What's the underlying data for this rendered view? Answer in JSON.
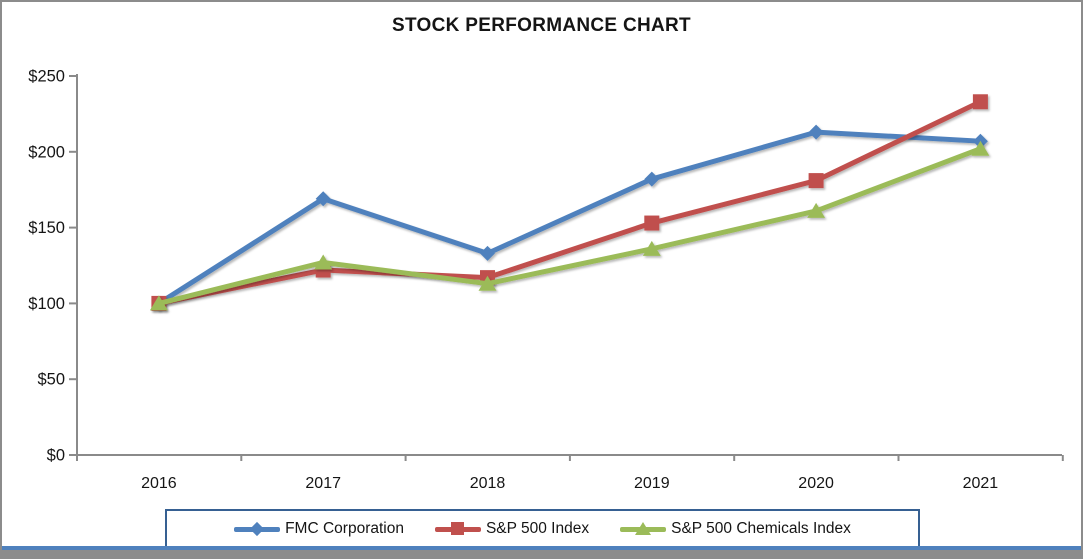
{
  "frame": {
    "title": "STOCK PERFORMANCE CHART"
  },
  "chart_data": {
    "type": "line",
    "title": "STOCK PERFORMANCE CHART",
    "categories": [
      "2016",
      "2017",
      "2018",
      "2019",
      "2020",
      "2021"
    ],
    "series": [
      {
        "name": "FMC Corporation",
        "marker": "diamond",
        "color": "#4F81BD",
        "values": [
          100,
          169,
          133,
          182,
          213,
          207
        ]
      },
      {
        "name": "S&P 500 Index",
        "marker": "square",
        "color": "#C0504D",
        "values": [
          100,
          122,
          117,
          153,
          181,
          233
        ]
      },
      {
        "name": "S&P 500 Chemicals Index",
        "marker": "triangle",
        "color": "#9BBB59",
        "values": [
          100,
          127,
          113,
          136,
          161,
          202
        ]
      }
    ],
    "y_axis": {
      "min": 0,
      "max": 250,
      "ticks": [
        {
          "label": "$0",
          "value": 0
        },
        {
          "label": "$50",
          "value": 50
        },
        {
          "label": "$100",
          "value": 100
        },
        {
          "label": "$150",
          "value": 150
        },
        {
          "label": "$200",
          "value": 200
        },
        {
          "label": "$250",
          "value": 250
        }
      ]
    },
    "gridlines": false,
    "legend_position": "bottom"
  },
  "colors": {
    "series_blue": "#4F81BD",
    "series_red": "#C0504D",
    "series_green": "#9BBB59",
    "axis_gray": "#8a8a8a",
    "text": "#151515",
    "frame_border": "#8c8c8c",
    "legend_border": "#366092",
    "bottom_rule_blue": "#4F81BD",
    "bottom_rule_gray": "#8c8c8c"
  }
}
